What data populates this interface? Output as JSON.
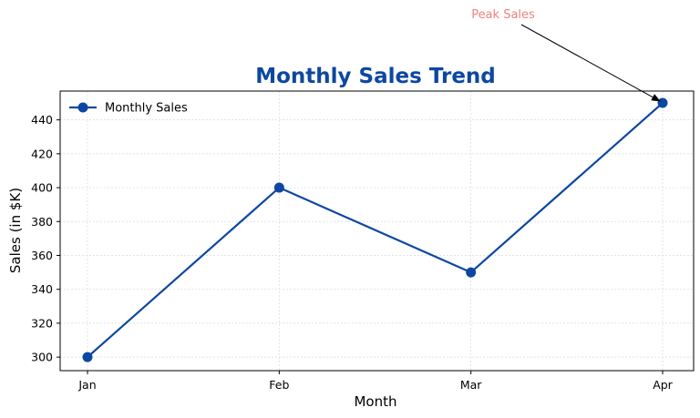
{
  "chart_data": {
    "type": "line",
    "title": "Monthly Sales Trend",
    "xlabel": "Month",
    "ylabel": "Sales (in $K)",
    "categories": [
      "Jan",
      "Feb",
      "Mar",
      "Apr"
    ],
    "series": [
      {
        "name": "Monthly Sales",
        "values": [
          300,
          400,
          350,
          450
        ]
      }
    ],
    "ylim": [
      292,
      457
    ],
    "yticks": [
      300,
      320,
      340,
      360,
      380,
      400,
      420,
      440
    ],
    "grid": true,
    "legend_position": "top-left",
    "annotation": {
      "text": "Peak Sales",
      "category": "Apr",
      "value": 450
    },
    "colors": {
      "line": "#0d47a1",
      "title": "#0d47a1",
      "annotation": "#f08080",
      "arrow": "#000000"
    }
  }
}
